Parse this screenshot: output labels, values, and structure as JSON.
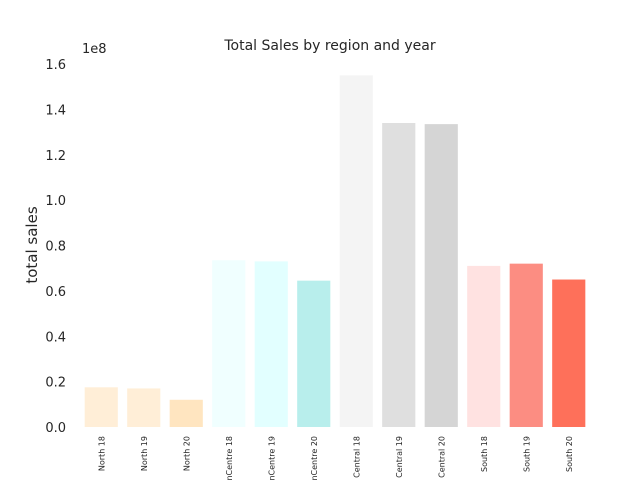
{
  "chart_data": {
    "type": "bar",
    "title": "Total Sales by region and year",
    "xlabel": "",
    "ylabel": "total sales",
    "y_multiplier": "1e8",
    "y_scale": 100000000,
    "ylim": [
      0,
      1.6
    ],
    "yticks": [
      "0.0",
      "0.2",
      "0.4",
      "0.6",
      "0.8",
      "1.0",
      "1.2",
      "1.4",
      "1.6"
    ],
    "grid": false,
    "categories": [
      "North 18",
      "North 19",
      "North 20",
      "nCentre 18",
      "nCentre 19",
      "nCentre 20",
      "Central 18",
      "Central 19",
      "Central 20",
      "South 18",
      "South 19",
      "South 20"
    ],
    "values": [
      17500000,
      17000000,
      12000000,
      73500000,
      73000000,
      64500000,
      155000000,
      134000000,
      133500000,
      71000000,
      72000000,
      65000000
    ],
    "colors": [
      "#ffeed7",
      "#ffeed7",
      "#ffe5c0",
      "#f0ffff",
      "#e2ffff",
      "#b8eeec",
      "#f4f4f4",
      "#dfdfdf",
      "#d5d5d5",
      "#ffe2e1",
      "#fc8d82",
      "#fe705a"
    ]
  }
}
